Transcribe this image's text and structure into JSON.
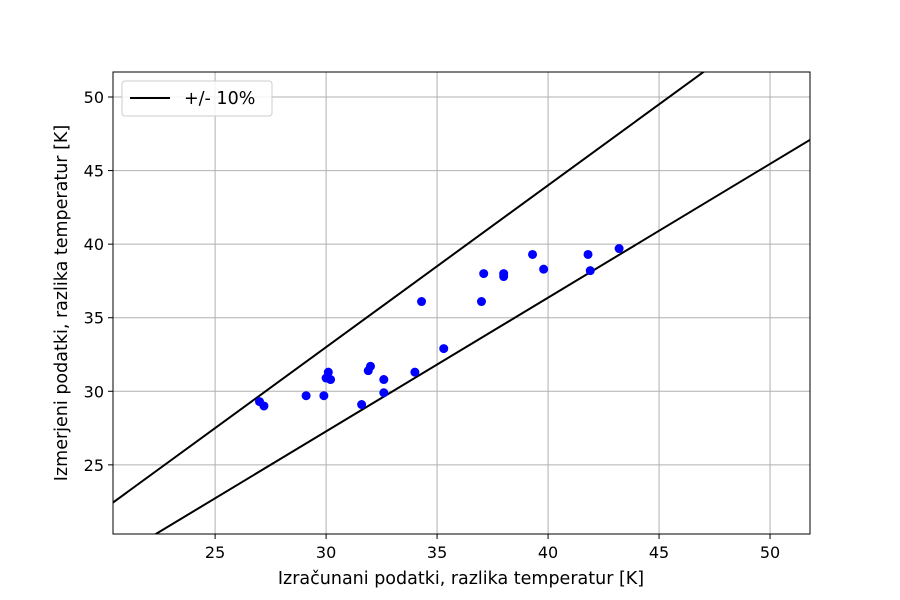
{
  "chart_data": {
    "type": "scatter",
    "title": "",
    "xlabel": "Izračunani podatki, razlika temperatur [K]",
    "ylabel": "Izmerjeni podatki, razlika temperatur [K]",
    "xlim": [
      20.4,
      51.8
    ],
    "ylim": [
      20.3,
      51.7
    ],
    "xticks": [
      25,
      30,
      35,
      40,
      45,
      50
    ],
    "yticks": [
      25,
      30,
      35,
      40,
      45,
      50
    ],
    "grid": true,
    "legend_position": "top-left",
    "legend_label": "+/- 10%",
    "line_color": "#000000",
    "point_color": "#0000ff",
    "bound_lines": [
      {
        "factor": 1.1
      },
      {
        "factor": 0.9091
      }
    ],
    "points": [
      {
        "x": 27.0,
        "y": 29.3
      },
      {
        "x": 27.2,
        "y": 29.0
      },
      {
        "x": 29.1,
        "y": 29.7
      },
      {
        "x": 29.9,
        "y": 29.7
      },
      {
        "x": 30.0,
        "y": 30.9
      },
      {
        "x": 30.1,
        "y": 31.3
      },
      {
        "x": 30.2,
        "y": 30.8
      },
      {
        "x": 31.6,
        "y": 29.1
      },
      {
        "x": 31.9,
        "y": 31.4
      },
      {
        "x": 32.0,
        "y": 31.7
      },
      {
        "x": 32.6,
        "y": 29.9
      },
      {
        "x": 32.6,
        "y": 30.8
      },
      {
        "x": 34.0,
        "y": 31.3
      },
      {
        "x": 34.3,
        "y": 36.1
      },
      {
        "x": 35.3,
        "y": 32.9
      },
      {
        "x": 37.0,
        "y": 36.1
      },
      {
        "x": 37.1,
        "y": 38.0
      },
      {
        "x": 38.0,
        "y": 37.8
      },
      {
        "x": 38.0,
        "y": 38.0
      },
      {
        "x": 39.3,
        "y": 39.3
      },
      {
        "x": 39.8,
        "y": 38.3
      },
      {
        "x": 41.8,
        "y": 39.3
      },
      {
        "x": 41.9,
        "y": 38.2
      },
      {
        "x": 43.2,
        "y": 39.7
      }
    ]
  }
}
